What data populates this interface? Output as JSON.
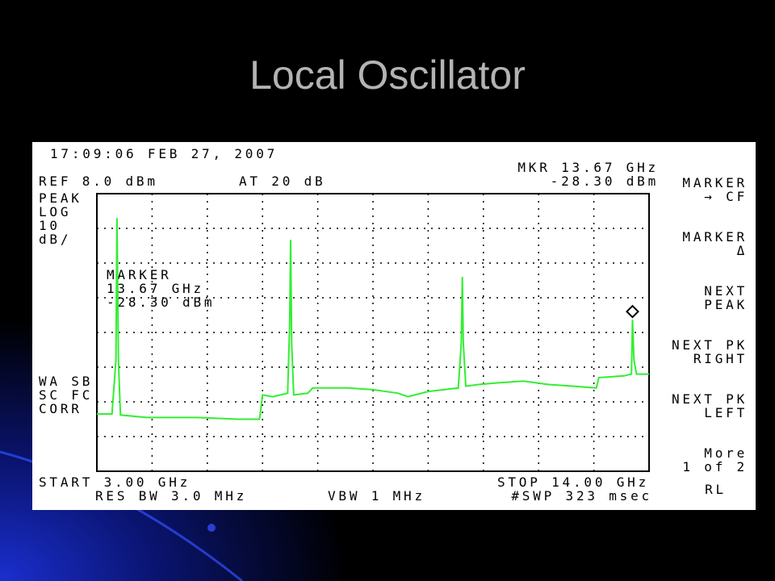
{
  "title": "Local Oscillator",
  "screen": {
    "timestamp": "17:09:06 FEB 27, 2007",
    "ref": "REF 8.0 dBm",
    "atten": "AT 20 dB",
    "mkr_freq": "MKR 13.67 GHz",
    "mkr_level": "-28.30 dBm",
    "left_labels": [
      "PEAK",
      "LOG",
      "10",
      "dB/"
    ],
    "marker_box": [
      "MARKER",
      "13.67 GHz",
      "-28.30 dBm"
    ],
    "corr_labels": [
      "WA SB",
      "SC FC",
      "CORR"
    ],
    "start": "START 3.00 GHz",
    "stop": "STOP 14.00 GHz",
    "res_bw": "RES BW 3.0 MHz",
    "vbw": "VBW 1 MHz",
    "sweep": "#SWP 323 msec",
    "softkeys": [
      [
        "MARKER",
        "→ CF"
      ],
      [
        "MARKER",
        "Δ"
      ],
      [
        "NEXT",
        "PEAK"
      ],
      [
        "NEXT PK",
        "RIGHT"
      ],
      [
        "NEXT PK",
        "LEFT"
      ],
      [
        "More",
        "1 of 2"
      ]
    ],
    "rl": "RL"
  },
  "chart_data": {
    "type": "line",
    "color": "#33ee33",
    "xlim": [
      3,
      14
    ],
    "ylim": [
      -72,
      8
    ],
    "grid": true,
    "x": [
      3.0,
      3.3,
      3.38,
      3.4,
      3.43,
      3.47,
      4.0,
      5.0,
      5.8,
      6.24,
      6.3,
      6.5,
      6.8,
      6.84,
      6.86,
      6.88,
      6.92,
      7.2,
      7.3,
      8.0,
      8.5,
      9.0,
      9.2,
      9.6,
      10.2,
      10.26,
      10.28,
      10.3,
      10.35,
      10.6,
      11.0,
      11.5,
      12.0,
      12.5,
      12.95,
      13.0,
      13.5,
      13.65,
      13.67,
      13.7,
      13.75,
      14.0
    ],
    "values": [
      -55.5,
      -55.5,
      -40,
      1,
      -40,
      -55.8,
      -56.5,
      -56.5,
      -57,
      -57,
      -50,
      -50.5,
      -49.5,
      -30,
      -5.3,
      -35,
      -50,
      -49.5,
      -48,
      -48,
      -48.5,
      -49.5,
      -50.5,
      -49,
      -48,
      -35,
      -16,
      -35,
      -47.5,
      -47,
      -46.5,
      -46,
      -47,
      -47.5,
      -48,
      -45,
      -44.5,
      -44,
      -28.3,
      -40,
      -44,
      -44
    ],
    "marker": {
      "x": 13.67,
      "value": -28.3
    }
  }
}
